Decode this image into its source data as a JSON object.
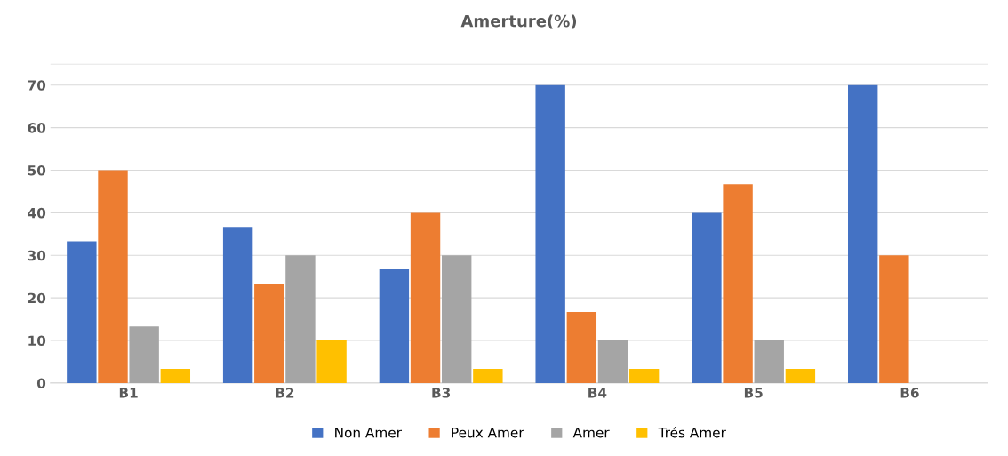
{
  "chart_data": {
    "type": "bar",
    "title": "Amerture(%)",
    "categories": [
      "B1",
      "B2",
      "B3",
      "B4",
      "B5",
      "B6"
    ],
    "series": [
      {
        "name": "Non Amer",
        "color": "#4472c4",
        "values": [
          33.3,
          36.7,
          26.7,
          70,
          40,
          70
        ]
      },
      {
        "name": "Peux Amer",
        "color": "#ed7d31",
        "values": [
          50,
          23.3,
          40,
          16.7,
          46.7,
          30
        ]
      },
      {
        "name": "Amer",
        "color": "#a5a5a5",
        "values": [
          13.3,
          30,
          30,
          10,
          10,
          0
        ]
      },
      {
        "name": "Trés Amer",
        "color": "#ffc000",
        "values": [
          3.3,
          10,
          3.3,
          3.3,
          3.3,
          0
        ]
      }
    ],
    "ylim": [
      0,
      75
    ],
    "yticks": [
      0,
      10,
      20,
      30,
      40,
      50,
      60,
      70,
      {
        "value": 75,
        "label": null
      }
    ],
    "grid": "y",
    "legend": "bottom"
  }
}
